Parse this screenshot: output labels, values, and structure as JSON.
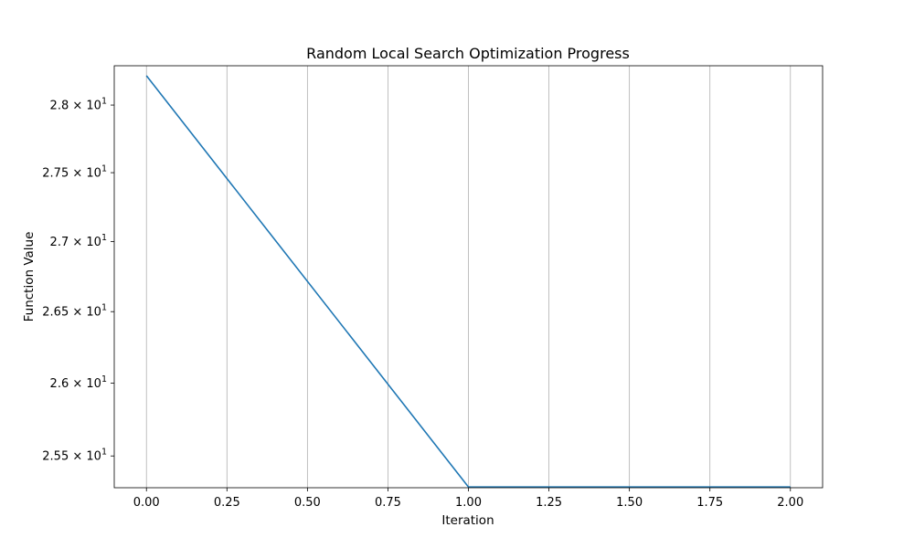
{
  "chart_data": {
    "type": "line",
    "title": "Random Local Search Optimization Progress",
    "xlabel": "Iteration",
    "ylabel": "Function Value",
    "xlim": [
      -0.1,
      2.1
    ],
    "ylim": [
      25.285,
      28.295
    ],
    "yscale": "log",
    "grid": {
      "x": true,
      "y": false
    },
    "x_ticks": [
      {
        "value": 0.0,
        "label": "0.00"
      },
      {
        "value": 0.25,
        "label": "0.25"
      },
      {
        "value": 0.5,
        "label": "0.50"
      },
      {
        "value": 0.75,
        "label": "0.75"
      },
      {
        "value": 1.0,
        "label": "1.00"
      },
      {
        "value": 1.25,
        "label": "1.25"
      },
      {
        "value": 1.5,
        "label": "1.50"
      },
      {
        "value": 1.75,
        "label": "1.75"
      },
      {
        "value": 2.0,
        "label": "2.00"
      }
    ],
    "y_ticks": [
      {
        "value": 25.5,
        "mantissa": "2.55",
        "base": "10",
        "exponent": "1"
      },
      {
        "value": 26.0,
        "mantissa": "2.6",
        "base": "10",
        "exponent": "1"
      },
      {
        "value": 26.5,
        "mantissa": "2.65",
        "base": "10",
        "exponent": "1"
      },
      {
        "value": 27.0,
        "mantissa": "2.7",
        "base": "10",
        "exponent": "1"
      },
      {
        "value": 27.5,
        "mantissa": "2.75",
        "base": "10",
        "exponent": "1"
      },
      {
        "value": 28.0,
        "mantissa": "2.8",
        "base": "10",
        "exponent": "1"
      }
    ],
    "series": [
      {
        "color": "#1f77b4",
        "x": [
          0,
          1,
          2
        ],
        "y": [
          28.22,
          25.29,
          25.29
        ]
      }
    ]
  }
}
